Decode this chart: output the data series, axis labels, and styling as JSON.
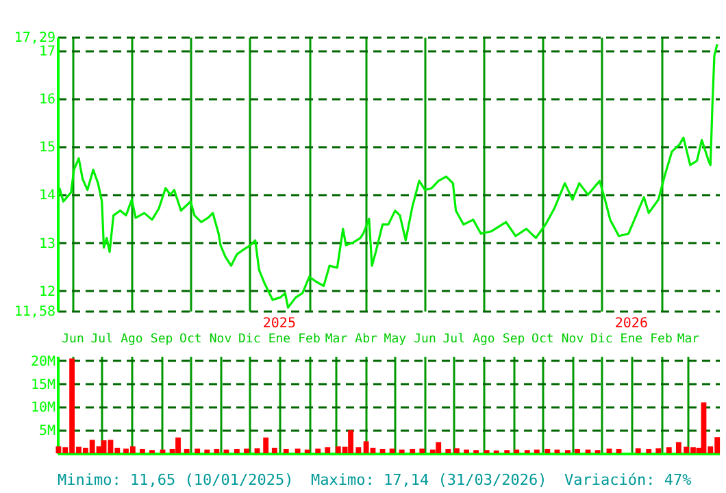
{
  "chart_data": [
    {
      "type": "line",
      "xlim": [
        "2024-05-16",
        "2026-04-02"
      ],
      "xticks": [
        {
          "value": "2024-06-01",
          "label": "Jun"
        },
        {
          "value": "2024-07-01",
          "label": "Jul"
        },
        {
          "value": "2024-08-01",
          "label": "Ago"
        },
        {
          "value": "2024-09-01",
          "label": "Sep"
        },
        {
          "value": "2024-10-01",
          "label": "Oct"
        },
        {
          "value": "2024-11-01",
          "label": "Nov"
        },
        {
          "value": "2024-12-01",
          "label": "Dic"
        },
        {
          "value": "2025-01-01",
          "label": "Ene"
        },
        {
          "value": "2025-02-01",
          "label": "Feb"
        },
        {
          "value": "2025-03-01",
          "label": "Mar"
        },
        {
          "value": "2025-04-01",
          "label": "Abr"
        },
        {
          "value": "2025-05-01",
          "label": "May"
        },
        {
          "value": "2025-06-01",
          "label": "Jun"
        },
        {
          "value": "2025-07-01",
          "label": "Jul"
        },
        {
          "value": "2025-08-01",
          "label": "Ago"
        },
        {
          "value": "2025-09-01",
          "label": "Sep"
        },
        {
          "value": "2025-10-01",
          "label": "Oct"
        },
        {
          "value": "2025-11-01",
          "label": "Nov"
        },
        {
          "value": "2025-12-01",
          "label": "Dic"
        },
        {
          "value": "2026-01-01",
          "label": "Ene"
        },
        {
          "value": "2026-02-01",
          "label": "Feb"
        },
        {
          "value": "2026-03-01",
          "label": "Mar"
        }
      ],
      "ylim": [
        11.58,
        17.29
      ],
      "yticks": [
        {
          "value": 11.58,
          "label": "11,58"
        },
        12,
        13,
        14,
        15,
        16,
        17,
        {
          "value": 17.29,
          "label": "17,29"
        }
      ],
      "grid": true,
      "annotations": [
        "2025",
        "2026"
      ],
      "series": [
        {
          "color": "#00ee00",
          "x": [
            "2024-05-18",
            "2024-05-22",
            "2024-05-30",
            "2024-06-02",
            "2024-06-07",
            "2024-06-11",
            "2024-06-16",
            "2024-06-22",
            "2024-06-27",
            "2024-07-01",
            "2024-07-03",
            "2024-07-06",
            "2024-07-09",
            "2024-07-13",
            "2024-07-20",
            "2024-07-26",
            "2024-08-01",
            "2024-08-05",
            "2024-08-14",
            "2024-08-22",
            "2024-08-29",
            "2024-09-05",
            "2024-09-10",
            "2024-09-14",
            "2024-09-21",
            "2024-10-01",
            "2024-10-05",
            "2024-10-12",
            "2024-10-19",
            "2024-10-24",
            "2024-10-30",
            "2024-11-01",
            "2024-11-06",
            "2024-11-12",
            "2024-11-18",
            "2024-11-25",
            "2024-12-02",
            "2024-12-07",
            "2024-12-11",
            "2024-12-17",
            "2024-12-25",
            "2025-01-02",
            "2025-01-07",
            "2025-01-10",
            "2025-01-18",
            "2025-01-25",
            "2025-02-01",
            "2025-02-08",
            "2025-02-16",
            "2025-02-22",
            "2025-03-02",
            "2025-03-08",
            "2025-03-11",
            "2025-03-18",
            "2025-03-26",
            "2025-03-29",
            "2025-04-04",
            "2025-04-07",
            "2025-04-11",
            "2025-04-18",
            "2025-04-24",
            "2025-05-01",
            "2025-05-06",
            "2025-05-12",
            "2025-05-19",
            "2025-05-26",
            "2025-06-01",
            "2025-06-08",
            "2025-06-15",
            "2025-06-23",
            "2025-06-30",
            "2025-07-03",
            "2025-07-11",
            "2025-07-21",
            "2025-07-29",
            "2025-08-09",
            "2025-08-24",
            "2025-09-03",
            "2025-09-14",
            "2025-09-24",
            "2025-10-04",
            "2025-10-13",
            "2025-10-24",
            "2025-11-01",
            "2025-11-08",
            "2025-11-17",
            "2025-11-29",
            "2025-12-04",
            "2025-12-10",
            "2025-12-19",
            "2025-12-29",
            "2026-01-06",
            "2026-01-14",
            "2026-01-19",
            "2026-01-29",
            "2026-02-05",
            "2026-02-12",
            "2026-02-20",
            "2026-02-24",
            "2026-03-03",
            "2026-03-10",
            "2026-03-15",
            "2026-03-22",
            "2026-03-24",
            "2026-03-26",
            "2026-03-28",
            "2026-03-31"
          ],
          "values": [
            14.14,
            13.86,
            14.05,
            14.52,
            14.76,
            14.33,
            14.1,
            14.52,
            14.24,
            13.86,
            12.9,
            13.1,
            12.81,
            13.57,
            13.67,
            13.57,
            13.9,
            13.52,
            13.62,
            13.48,
            13.71,
            14.14,
            14.0,
            14.1,
            13.67,
            13.86,
            13.57,
            13.43,
            13.52,
            13.62,
            13.19,
            12.95,
            12.71,
            12.52,
            12.76,
            12.86,
            12.95,
            13.05,
            12.43,
            12.14,
            11.81,
            11.86,
            11.95,
            11.65,
            11.86,
            11.95,
            12.29,
            12.19,
            12.1,
            12.52,
            12.48,
            13.29,
            12.95,
            13.0,
            13.1,
            13.19,
            13.5,
            12.52,
            12.81,
            13.38,
            13.38,
            13.67,
            13.57,
            13.05,
            13.76,
            14.29,
            14.1,
            14.14,
            14.29,
            14.38,
            14.24,
            13.67,
            13.38,
            13.48,
            13.19,
            13.24,
            13.43,
            13.14,
            13.29,
            13.1,
            13.38,
            13.71,
            14.24,
            13.9,
            14.24,
            14.0,
            14.29,
            13.95,
            13.48,
            13.14,
            13.19,
            13.57,
            13.95,
            13.62,
            13.9,
            14.43,
            14.9,
            15.05,
            15.19,
            14.62,
            14.71,
            15.14,
            14.71,
            14.62,
            15.86,
            16.9,
            17.14
          ]
        }
      ]
    },
    {
      "type": "bar",
      "xlim": [
        "2024-05-16",
        "2026-04-02"
      ],
      "xticks": [
        {
          "value": "2024-06-01",
          "label": null
        },
        {
          "value": "2024-07-01",
          "label": null
        },
        {
          "value": "2024-08-01",
          "label": null
        },
        {
          "value": "2024-09-01",
          "label": null
        },
        {
          "value": "2024-10-01",
          "label": null
        },
        {
          "value": "2024-11-01",
          "label": null
        },
        {
          "value": "2024-12-01",
          "label": null
        },
        {
          "value": "2025-01-01",
          "label": null
        },
        {
          "value": "2025-02-01",
          "label": null
        },
        {
          "value": "2025-03-01",
          "label": null
        },
        {
          "value": "2025-04-01",
          "label": null
        },
        {
          "value": "2025-05-01",
          "label": null
        },
        {
          "value": "2025-06-01",
          "label": null
        },
        {
          "value": "2025-07-01",
          "label": null
        },
        {
          "value": "2025-08-01",
          "label": null
        },
        {
          "value": "2025-09-01",
          "label": null
        },
        {
          "value": "2025-10-01",
          "label": null
        },
        {
          "value": "2025-11-01",
          "label": null
        },
        {
          "value": "2025-12-01",
          "label": null
        },
        {
          "value": "2026-01-01",
          "label": null
        },
        {
          "value": "2026-02-01",
          "label": null
        },
        {
          "value": "2026-03-01",
          "label": null
        }
      ],
      "ylim": [
        0,
        21000000
      ],
      "yticks": [
        {
          "value": 5000000,
          "label": "5M"
        },
        {
          "value": 10000000,
          "label": "10M"
        },
        {
          "value": 15000000,
          "label": "15M"
        },
        {
          "value": 20000000,
          "label": "20M"
        }
      ],
      "grid": true,
      "tick_labels": "y",
      "annotations": [
        "Minimo: 11,65 (10/01/2025)",
        "Maximo: 17,14 (31/03/2026)",
        "Variación: 47%"
      ],
      "series": [
        {
          "color": "#ff0000",
          "x": [
            "2024-05-17",
            "2024-05-24",
            "2024-05-31",
            "2024-06-07",
            "2024-06-14",
            "2024-06-21",
            "2024-06-28",
            "2024-07-03",
            "2024-07-10",
            "2024-07-17",
            "2024-07-26",
            "2024-08-02",
            "2024-08-12",
            "2024-08-22",
            "2024-09-02",
            "2024-09-12",
            "2024-09-18",
            "2024-09-27",
            "2024-10-08",
            "2024-10-18",
            "2024-10-28",
            "2024-11-07",
            "2024-11-18",
            "2024-11-28",
            "2024-12-09",
            "2024-12-18",
            "2024-12-27",
            "2025-01-08",
            "2025-01-20",
            "2025-01-30",
            "2025-02-10",
            "2025-02-20",
            "2025-03-03",
            "2025-03-10",
            "2025-03-16",
            "2025-03-24",
            "2025-04-01",
            "2025-04-08",
            "2025-04-18",
            "2025-04-28",
            "2025-05-08",
            "2025-05-19",
            "2025-05-29",
            "2025-06-09",
            "2025-06-15",
            "2025-06-25",
            "2025-07-04",
            "2025-07-14",
            "2025-07-24",
            "2025-08-04",
            "2025-08-14",
            "2025-08-25",
            "2025-09-04",
            "2025-09-15",
            "2025-09-25",
            "2025-10-06",
            "2025-10-16",
            "2025-10-27",
            "2025-11-06",
            "2025-11-17",
            "2025-11-27",
            "2025-12-09",
            "2025-12-19",
            "2026-01-08",
            "2026-01-19",
            "2026-01-29",
            "2026-02-09",
            "2026-02-19",
            "2026-02-27",
            "2026-03-06",
            "2026-03-12",
            "2026-03-17",
            "2026-03-24",
            "2026-03-31"
          ],
          "values": [
            1500000,
            1300000,
            20500000,
            1400000,
            1200000,
            2900000,
            1500000,
            2800000,
            2900000,
            1200000,
            1000000,
            1500000,
            900000,
            700000,
            800000,
            900000,
            3400000,
            900000,
            1000000,
            800000,
            900000,
            800000,
            900000,
            1000000,
            1100000,
            3400000,
            1200000,
            900000,
            1000000,
            800000,
            1000000,
            1300000,
            1500000,
            1400000,
            5000000,
            1300000,
            2600000,
            1200000,
            900000,
            1000000,
            800000,
            900000,
            1000000,
            800000,
            2400000,
            900000,
            1100000,
            800000,
            700000,
            700000,
            600000,
            700000,
            800000,
            700000,
            800000,
            900000,
            800000,
            700000,
            900000,
            800000,
            700000,
            1000000,
            900000,
            1100000,
            900000,
            1100000,
            1300000,
            2400000,
            1400000,
            1300000,
            1200000,
            11000000,
            1500000,
            3500000
          ]
        }
      ]
    }
  ]
}
